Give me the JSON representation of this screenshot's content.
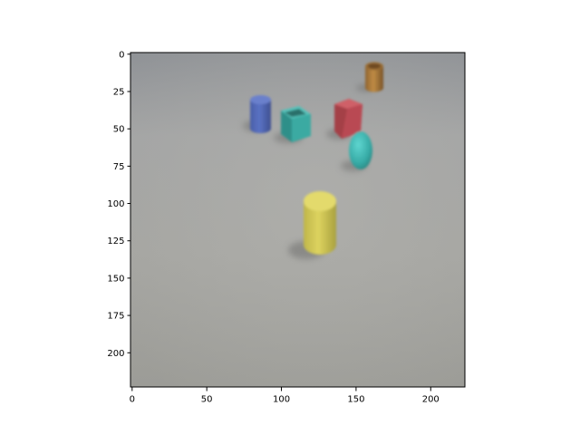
{
  "axes": {
    "x_ticks": [
      {
        "value": 0,
        "label": "0"
      },
      {
        "value": 50,
        "label": "50"
      },
      {
        "value": 100,
        "label": "100"
      },
      {
        "value": 150,
        "label": "150"
      },
      {
        "value": 200,
        "label": "200"
      }
    ],
    "y_ticks": [
      {
        "value": 0,
        "label": "0"
      },
      {
        "value": 25,
        "label": "25"
      },
      {
        "value": 50,
        "label": "50"
      },
      {
        "value": 75,
        "label": "75"
      },
      {
        "value": 100,
        "label": "100"
      },
      {
        "value": 125,
        "label": "125"
      },
      {
        "value": 150,
        "label": "150"
      },
      {
        "value": 175,
        "label": "175"
      },
      {
        "value": 200,
        "label": "200"
      }
    ],
    "x_range": [
      0,
      224
    ],
    "y_range": [
      0,
      224
    ]
  },
  "scene": {
    "background_color": "#9e9e9c",
    "objects": [
      {
        "shape": "cylinder",
        "color": "#a77a3a",
        "material": "metal"
      },
      {
        "shape": "cylinder",
        "color": "#5068b8",
        "material": "rubber"
      },
      {
        "shape": "cube",
        "color": "#3aa8a0",
        "material": "metal"
      },
      {
        "shape": "cube",
        "color": "#c04c55",
        "material": "rubber"
      },
      {
        "shape": "sphere",
        "color": "#3fbcb6",
        "material": "rubber"
      },
      {
        "shape": "cylinder",
        "color": "#d9cf5c",
        "material": "rubber"
      }
    ]
  }
}
